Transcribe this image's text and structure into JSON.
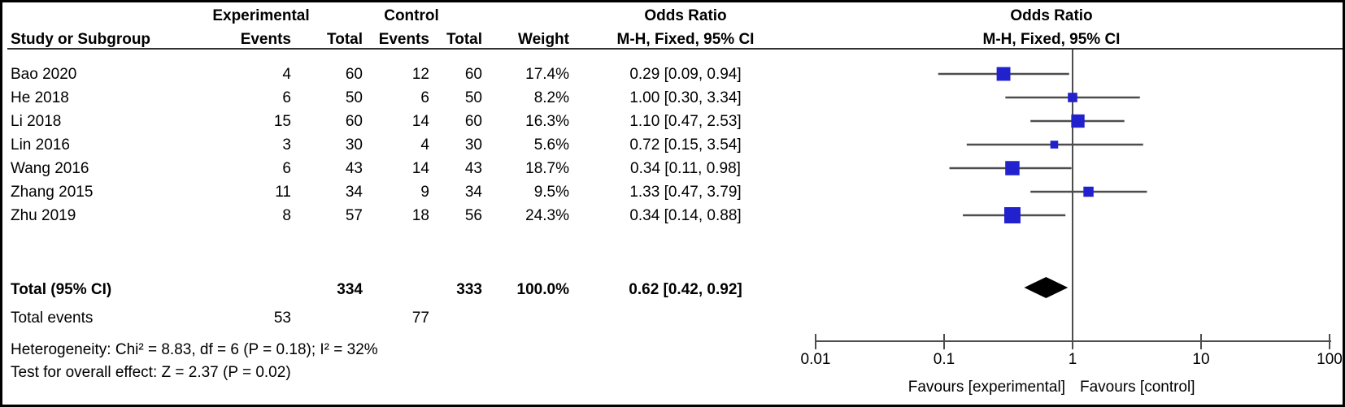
{
  "header": {
    "group_experimental": "Experimental",
    "group_control": "Control",
    "or_col_title": "Odds Ratio",
    "or_col_subtitle": "M-H, Fixed, 95% CI",
    "plot_title": "Odds Ratio",
    "plot_subtitle": "M-H, Fixed, 95% CI",
    "col_study": "Study or Subgroup",
    "col_events_exp": "Events",
    "col_total_exp": "Total",
    "col_events_ctl": "Events",
    "col_total_ctl": "Total",
    "col_weight": "Weight"
  },
  "studies": [
    {
      "name": "Bao 2020",
      "exp_events": "4",
      "exp_total": "60",
      "ctl_events": "12",
      "ctl_total": "60",
      "weight": "17.4%",
      "or_ci": "0.29 [0.09, 0.94]"
    },
    {
      "name": "He 2018",
      "exp_events": "6",
      "exp_total": "50",
      "ctl_events": "6",
      "ctl_total": "50",
      "weight": "8.2%",
      "or_ci": "1.00 [0.30, 3.34]"
    },
    {
      "name": "Li 2018",
      "exp_events": "15",
      "exp_total": "60",
      "ctl_events": "14",
      "ctl_total": "60",
      "weight": "16.3%",
      "or_ci": "1.10 [0.47, 2.53]"
    },
    {
      "name": "Lin 2016",
      "exp_events": "3",
      "exp_total": "30",
      "ctl_events": "4",
      "ctl_total": "30",
      "weight": "5.6%",
      "or_ci": "0.72 [0.15, 3.54]"
    },
    {
      "name": "Wang 2016",
      "exp_events": "6",
      "exp_total": "43",
      "ctl_events": "14",
      "ctl_total": "43",
      "weight": "18.7%",
      "or_ci": "0.34 [0.11, 0.98]"
    },
    {
      "name": "Zhang 2015",
      "exp_events": "11",
      "exp_total": "34",
      "ctl_events": "9",
      "ctl_total": "34",
      "weight": "9.5%",
      "or_ci": "1.33 [0.47, 3.79]"
    },
    {
      "name": "Zhu 2019",
      "exp_events": "8",
      "exp_total": "57",
      "ctl_events": "18",
      "ctl_total": "56",
      "weight": "24.3%",
      "or_ci": "0.34 [0.14, 0.88]"
    }
  ],
  "total_row": {
    "label": "Total (95% CI)",
    "exp_total": "334",
    "ctl_total": "333",
    "weight": "100.0%",
    "or_ci": "0.62 [0.42, 0.92]"
  },
  "total_events": {
    "label": "Total events",
    "exp": "53",
    "ctl": "77"
  },
  "footnotes": {
    "heterogeneity": "Heterogeneity: Chi² = 8.83, df = 6 (P = 0.18); I² = 32%",
    "overall_effect": "Test for overall effect: Z = 2.37 (P = 0.02)"
  },
  "axis_labels": {
    "ticks": [
      "0.01",
      "0.1",
      "1",
      "10",
      "100"
    ],
    "favours_left": "Favours [experimental]",
    "favours_right": "Favours [control]"
  },
  "colors": {
    "square": "#2121CE",
    "diamond": "#000000",
    "line": "#4D4D4D",
    "text": "#000000"
  },
  "chart_data": {
    "type": "scatter",
    "variant": "forest-plot",
    "effect_measure": "Odds Ratio (M-H, Fixed, 95% CI)",
    "x_scale": "log",
    "xlim": [
      0.01,
      100
    ],
    "x_ticks": [
      0.01,
      0.1,
      1,
      10,
      100
    ],
    "null_line": 1,
    "studies": [
      {
        "name": "Bao 2020",
        "or": 0.29,
        "ci_low": 0.09,
        "ci_high": 0.94,
        "weight_pct": 17.4
      },
      {
        "name": "He 2018",
        "or": 1.0,
        "ci_low": 0.3,
        "ci_high": 3.34,
        "weight_pct": 8.2
      },
      {
        "name": "Li 2018",
        "or": 1.1,
        "ci_low": 0.47,
        "ci_high": 2.53,
        "weight_pct": 16.3
      },
      {
        "name": "Lin 2016",
        "or": 0.72,
        "ci_low": 0.15,
        "ci_high": 3.54,
        "weight_pct": 5.6
      },
      {
        "name": "Wang 2016",
        "or": 0.34,
        "ci_low": 0.11,
        "ci_high": 0.98,
        "weight_pct": 18.7
      },
      {
        "name": "Zhang 2015",
        "or": 1.33,
        "ci_low": 0.47,
        "ci_high": 3.79,
        "weight_pct": 9.5
      },
      {
        "name": "Zhu 2019",
        "or": 0.34,
        "ci_low": 0.14,
        "ci_high": 0.88,
        "weight_pct": 24.3
      }
    ],
    "total": {
      "or": 0.62,
      "ci_low": 0.42,
      "ci_high": 0.92,
      "weight_pct": 100.0
    },
    "annotations": {
      "favours_left": "Favours [experimental]",
      "favours_right": "Favours [control]"
    },
    "legend_position": "none",
    "grid": false
  }
}
